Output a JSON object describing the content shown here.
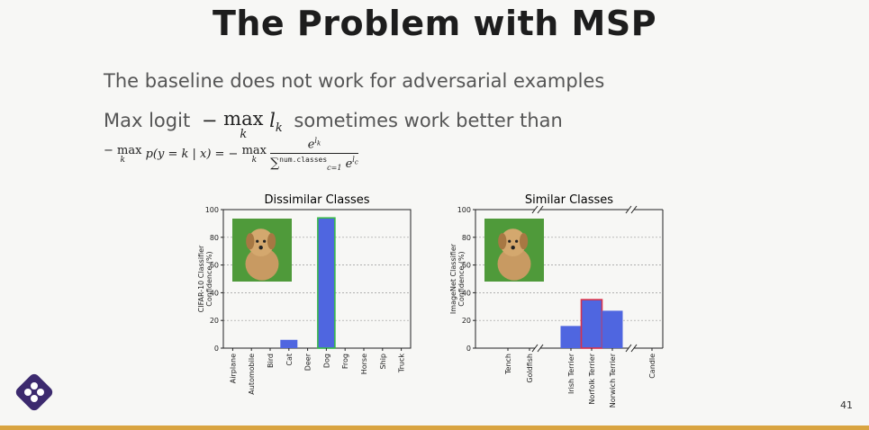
{
  "slide": {
    "title": "The Problem with MSP",
    "line1": "The baseline does not work for adversarial examples",
    "line2_prefix": "Max logit",
    "line2_suffix": "sometimes work better than",
    "number": "41"
  },
  "chart_data": [
    {
      "type": "bar",
      "title": "Dissimilar Classes",
      "ylabel": "CIFAR-10 Classifier Confidence (%)",
      "categories": [
        "Airplane",
        "Automobile",
        "Bird",
        "Cat",
        "Deer",
        "Dog",
        "Frog",
        "Horse",
        "Ship",
        "Truck"
      ],
      "values": [
        0,
        0,
        0,
        6,
        0,
        94,
        0,
        0,
        0,
        0
      ],
      "highlight": "Dog",
      "ylim": [
        0,
        100
      ],
      "yticks": [
        0,
        20,
        40,
        60,
        80,
        100
      ],
      "grid": true,
      "bar_color": "#4f66e0",
      "highlight_color": "#39b84a"
    },
    {
      "type": "bar",
      "title": "Similar Classes",
      "ylabel": "ImageNet Classifier Confidence (%)",
      "categories": [
        "Tench",
        "Goldfish",
        "Irish Terrier",
        "Norfolk Terrier",
        "Norwich Terrier",
        "Candle"
      ],
      "values": [
        0,
        0,
        16,
        35,
        27,
        0
      ],
      "highlight": "Norfolk Terrier",
      "ylim": [
        0,
        100
      ],
      "yticks": [
        0,
        20,
        40,
        60,
        80,
        100
      ],
      "grid": true,
      "bar_color": "#4f66e0",
      "highlight_color": "#d9324a"
    }
  ]
}
